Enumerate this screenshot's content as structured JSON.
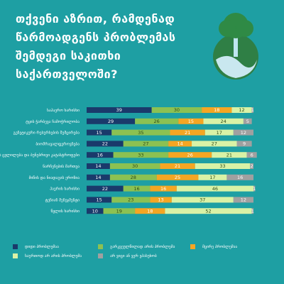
{
  "title": "თქვენი აზრით, რამდენად წარმოადგენს პრობლემას შემდეგი საკითხი საქართველოში?",
  "colors": {
    "background": "#1e9fa3",
    "categories": [
      "#1a3a6b",
      "#8cc152",
      "#f5a623",
      "#d9f2a6",
      "#a0a0a0"
    ]
  },
  "chart_data": {
    "type": "bar",
    "stacked": true,
    "orientation": "horizontal",
    "categories": [
      "საჰაერო ხარისხი",
      "ტყის ჭარბევა ჩამოჭრილობა",
      "გენეტიკური რესურსების შემცირება",
      "ბიომრავალფეროვნება",
      "კლიმატის ცვლილება და ბუნებრივი კატასტროფები",
      "ნარჩენების მართვა",
      "მიწის და ნიადაგის ეროზია",
      "ჰაერის ხარისხი",
      "ტენიან მენეჯმენტი",
      "წყლის ხარისხი"
    ],
    "series": [
      {
        "name": "დიდი პრობლემაა",
        "values": [
          39,
          29,
          15,
          22,
          16,
          14,
          14,
          22,
          15,
          10
        ]
      },
      {
        "name": "გარკვეულწილად არის პრობლემა",
        "values": [
          30,
          26,
          35,
          27,
          33,
          30,
          28,
          16,
          23,
          19
        ]
      },
      {
        "name": "მცირე პრობლემაა",
        "values": [
          18,
          15,
          21,
          14,
          26,
          21,
          25,
          16,
          13,
          18
        ]
      },
      {
        "name": "საერთოდ არ არის პრობლემა",
        "values": [
          12,
          24,
          17,
          27,
          21,
          33,
          17,
          46,
          37,
          52
        ]
      },
      {
        "name": "არ ვიცი ან ვერ ვპასუხობ",
        "values": [
          1,
          5,
          12,
          9,
          6,
          2,
          16,
          1,
          12,
          1
        ]
      }
    ],
    "xlim": [
      0,
      100
    ]
  }
}
